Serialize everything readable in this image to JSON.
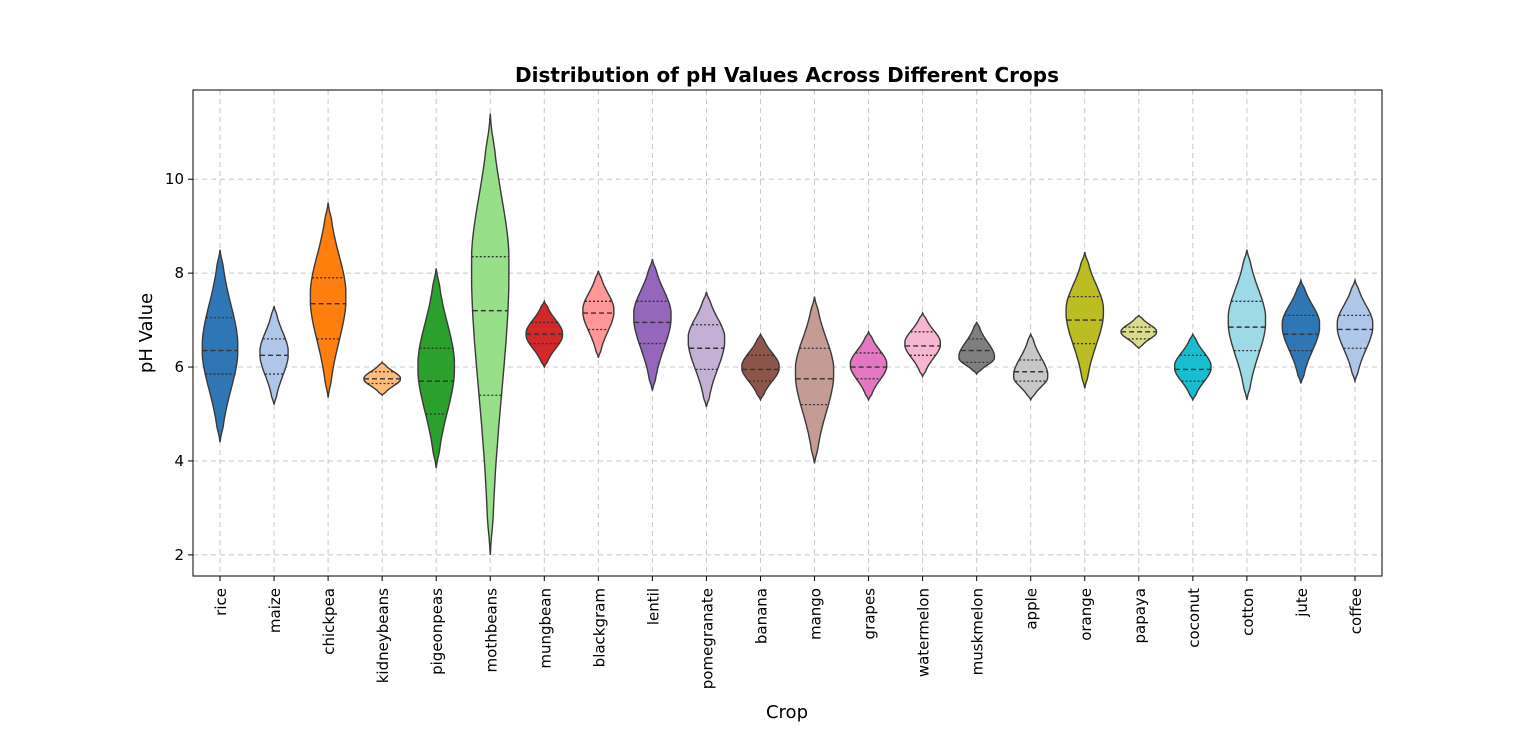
{
  "chart_data": {
    "type": "violin",
    "title": "Distribution of pH Values Across Different Crops",
    "xlabel": "Crop",
    "ylabel": "pH Value",
    "ylim": [
      1.55,
      11.9
    ],
    "yticks": [
      2,
      4,
      6,
      8,
      10
    ],
    "grid": true,
    "inner": "quartile",
    "categories": [
      "rice",
      "maize",
      "chickpea",
      "kidneybeans",
      "pigeonpeas",
      "mothbeans",
      "mungbean",
      "blackgram",
      "lentil",
      "pomegranate",
      "banana",
      "mango",
      "grapes",
      "watermelon",
      "muskmelon",
      "apple",
      "orange",
      "papaya",
      "coconut",
      "cotton",
      "jute",
      "coffee"
    ],
    "violins": [
      {
        "category": "rice",
        "color": "#2f77b4",
        "min": 4.4,
        "max": 8.5,
        "q1": 5.85,
        "median": 6.35,
        "q3": 7.05,
        "mode": 6.4,
        "width": 0.78
      },
      {
        "category": "maize",
        "color": "#aec7e8",
        "min": 5.2,
        "max": 7.3,
        "q1": 5.85,
        "median": 6.25,
        "q3": 6.6,
        "mode": 6.3,
        "width": 0.62
      },
      {
        "category": "chickpea",
        "color": "#ff7f0e",
        "min": 5.35,
        "max": 9.5,
        "q1": 6.6,
        "median": 7.35,
        "q3": 7.9,
        "mode": 7.5,
        "width": 0.78
      },
      {
        "category": "kidneybeans",
        "color": "#ffbb78",
        "min": 5.4,
        "max": 6.1,
        "q1": 5.65,
        "median": 5.75,
        "q3": 5.9,
        "mode": 5.75,
        "width": 0.8
      },
      {
        "category": "pigeonpeas",
        "color": "#2ca02c",
        "min": 3.85,
        "max": 8.1,
        "q1": 5.0,
        "median": 5.7,
        "q3": 6.4,
        "mode": 6.0,
        "width": 0.8
      },
      {
        "category": "mothbeans",
        "color": "#98df8a",
        "min": 2.0,
        "max": 11.4,
        "q1": 5.4,
        "median": 7.2,
        "q3": 8.35,
        "mode": 8.2,
        "width": 0.82
      },
      {
        "category": "mungbean",
        "color": "#d62728",
        "min": 6.0,
        "max": 7.4,
        "q1": 6.5,
        "median": 6.7,
        "q3": 6.95,
        "mode": 6.7,
        "width": 0.8
      },
      {
        "category": "blackgram",
        "color": "#ff9896",
        "min": 6.2,
        "max": 8.05,
        "q1": 6.8,
        "median": 7.15,
        "q3": 7.4,
        "mode": 7.2,
        "width": 0.68
      },
      {
        "category": "lentil",
        "color": "#9467bd",
        "min": 5.5,
        "max": 8.3,
        "q1": 6.5,
        "median": 6.95,
        "q3": 7.4,
        "mode": 7.1,
        "width": 0.82
      },
      {
        "category": "pomegranate",
        "color": "#c5b0d5",
        "min": 5.15,
        "max": 7.6,
        "q1": 5.95,
        "median": 6.4,
        "q3": 6.9,
        "mode": 6.6,
        "width": 0.8
      },
      {
        "category": "banana",
        "color": "#8c564b",
        "min": 5.3,
        "max": 6.7,
        "q1": 5.7,
        "median": 5.95,
        "q3": 6.25,
        "mode": 6.0,
        "width": 0.82
      },
      {
        "category": "mango",
        "color": "#c49c94",
        "min": 3.95,
        "max": 7.5,
        "q1": 5.2,
        "median": 5.75,
        "q3": 6.4,
        "mode": 5.9,
        "width": 0.84
      },
      {
        "category": "grapes",
        "color": "#e377c2",
        "min": 5.3,
        "max": 6.75,
        "q1": 5.75,
        "median": 6.0,
        "q3": 6.3,
        "mode": 6.05,
        "width": 0.8
      },
      {
        "category": "watermelon",
        "color": "#f7b6d2",
        "min": 5.8,
        "max": 7.15,
        "q1": 6.25,
        "median": 6.45,
        "q3": 6.75,
        "mode": 6.5,
        "width": 0.78
      },
      {
        "category": "muskmelon",
        "color": "#7f7f7f",
        "min": 5.85,
        "max": 6.95,
        "q1": 6.1,
        "median": 6.35,
        "q3": 6.6,
        "mode": 6.2,
        "width": 0.78
      },
      {
        "category": "apple",
        "color": "#c7c7c7",
        "min": 5.3,
        "max": 6.7,
        "q1": 5.7,
        "median": 5.9,
        "q3": 6.15,
        "mode": 5.8,
        "width": 0.75
      },
      {
        "category": "orange",
        "color": "#bcbd22",
        "min": 5.55,
        "max": 8.45,
        "q1": 6.5,
        "median": 7.0,
        "q3": 7.5,
        "mode": 7.2,
        "width": 0.82
      },
      {
        "category": "papaya",
        "color": "#dbdb8d",
        "min": 6.4,
        "max": 7.1,
        "q1": 6.6,
        "median": 6.75,
        "q3": 6.85,
        "mode": 6.75,
        "width": 0.78
      },
      {
        "category": "coconut",
        "color": "#17becf",
        "min": 5.3,
        "max": 6.7,
        "q1": 5.7,
        "median": 5.95,
        "q3": 6.25,
        "mode": 6.0,
        "width": 0.8
      },
      {
        "category": "cotton",
        "color": "#9edae5",
        "min": 5.3,
        "max": 8.5,
        "q1": 6.35,
        "median": 6.85,
        "q3": 7.4,
        "mode": 7.0,
        "width": 0.82
      },
      {
        "category": "jute",
        "color": "#2f77b4",
        "min": 5.65,
        "max": 7.85,
        "q1": 6.35,
        "median": 6.7,
        "q3": 7.1,
        "mode": 6.9,
        "width": 0.82
      },
      {
        "category": "coffee",
        "color": "#aec7e8",
        "min": 5.7,
        "max": 7.85,
        "q1": 6.4,
        "median": 6.8,
        "q3": 7.1,
        "mode": 6.9,
        "width": 0.78
      }
    ]
  }
}
